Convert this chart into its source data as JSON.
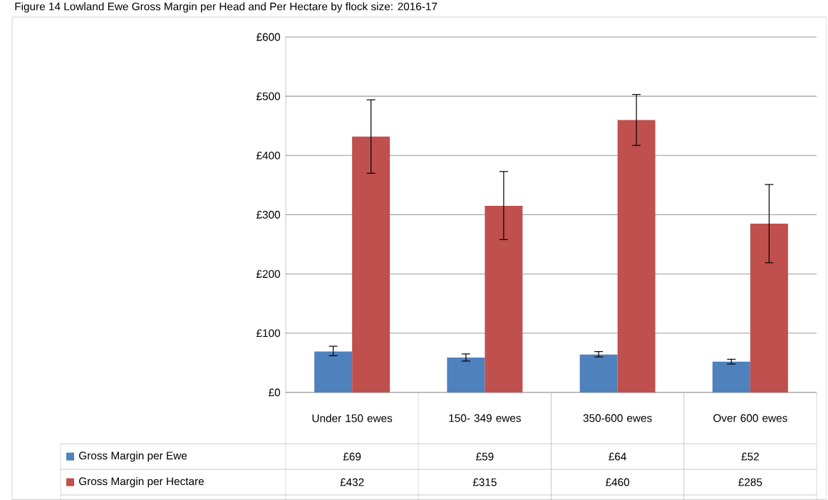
{
  "chart_data": {
    "type": "bar",
    "title": "Figure 14 Lowland Ewe Gross Margin per Head and Per Hectare by flock size: 2016-17",
    "categories": [
      "Under 150 ewes",
      "150- 349 ewes",
      "350-600 ewes",
      "Over 600 ewes"
    ],
    "series": [
      {
        "name": "Gross Margin per Ewe",
        "color": "#4f81bd",
        "values": [
          69,
          59,
          64,
          52
        ],
        "errors": [
          [
            62,
            78
          ],
          [
            53,
            65
          ],
          [
            60,
            69
          ],
          [
            48,
            56
          ]
        ],
        "value_labels": [
          "£69",
          "£59",
          "£64",
          "£52"
        ]
      },
      {
        "name": "Gross Margin per Hectare",
        "color": "#c0504d",
        "values": [
          432,
          315,
          460,
          285
        ],
        "errors": [
          [
            370,
            494
          ],
          [
            258,
            373
          ],
          [
            417,
            503
          ],
          [
            219,
            351
          ]
        ],
        "value_labels": [
          "£432",
          "£315",
          "£460",
          "£285"
        ]
      }
    ],
    "ylim": [
      0,
      600
    ],
    "yticks": [
      {
        "value": 0,
        "label": "£0"
      },
      {
        "value": 100,
        "label": "£100"
      },
      {
        "value": 200,
        "label": "£200"
      },
      {
        "value": 300,
        "label": "£300"
      },
      {
        "value": 400,
        "label": "£400"
      },
      {
        "value": 500,
        "label": "£500"
      },
      {
        "value": 600,
        "label": "£600"
      }
    ],
    "grid": "y",
    "legend": "bottom"
  }
}
